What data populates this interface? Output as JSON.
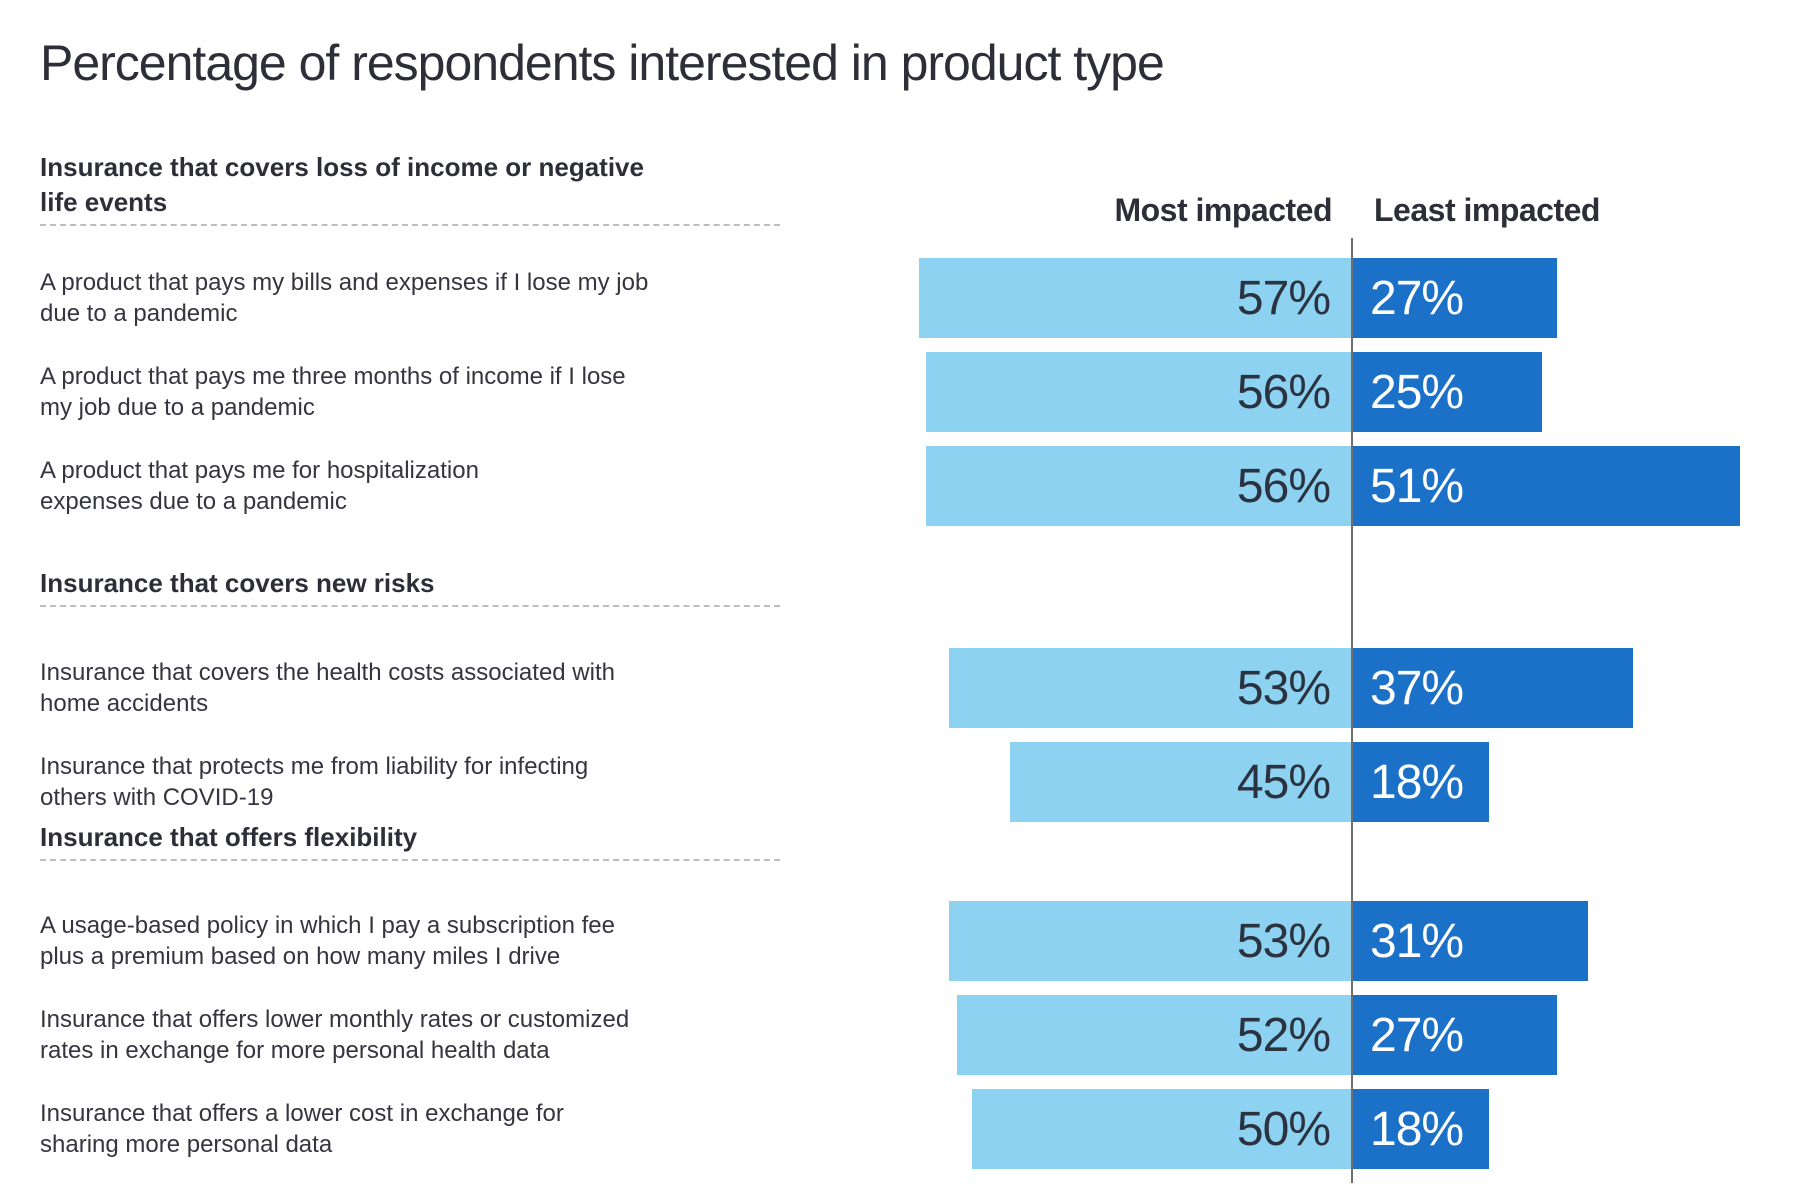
{
  "title": "Percentage of respondents interested in product type",
  "legend": {
    "most_label": "Most impacted",
    "least_label": "Least impacted",
    "position": "top"
  },
  "colors": {
    "most_bar": "#8DD2F1",
    "least_bar": "#1B70C8",
    "text": "#2e2e38",
    "axis_line": "#6f6f6f",
    "divider_dotted": "#bdbdbd",
    "value_on_most": "#2b3240",
    "value_on_least": "#ffffff"
  },
  "chart_data": {
    "type": "bar",
    "orientation": "diverging-horizontal",
    "unit": "%",
    "title": "Percentage of respondents interested in product type",
    "series": [
      {
        "name": "Most impacted",
        "side": "left"
      },
      {
        "name": "Least impacted",
        "side": "right"
      }
    ],
    "axis": {
      "center_line": true,
      "value_labels_inside_bars": true,
      "grid": false
    },
    "groups": [
      {
        "header": "Insurance that covers loss of income or negative\nlife events",
        "rows": [
          {
            "label": "A product that pays my bills and expenses if I lose my job\ndue to a pandemic",
            "most": 57,
            "least": 27
          },
          {
            "label": "A product that pays me three months of income if I lose\nmy job due to a pandemic",
            "most": 56,
            "least": 25
          },
          {
            "label": "A product that pays me for hospitalization\nexpenses due to a pandemic",
            "most": 56,
            "least": 51
          }
        ]
      },
      {
        "header": "Insurance that covers new risks",
        "rows": [
          {
            "label": "Insurance that covers the health costs associated with\nhome accidents",
            "most": 53,
            "least": 37
          },
          {
            "label": "Insurance that protects me from liability for infecting\nothers with COVID-19",
            "most": 45,
            "least": 18
          }
        ]
      },
      {
        "header": "Insurance that offers flexibility",
        "rows": [
          {
            "label": "A usage-based policy in which I pay a subscription fee\nplus a premium based on how many miles I drive",
            "most": 53,
            "least": 31
          },
          {
            "label": "Insurance that offers lower monthly rates or customized\nrates in exchange for more personal health data",
            "most": 52,
            "least": 27
          },
          {
            "label": "Insurance that offers a lower cost in exchange for\nsharing more personal data",
            "most": 50,
            "least": 18
          }
        ]
      }
    ]
  }
}
